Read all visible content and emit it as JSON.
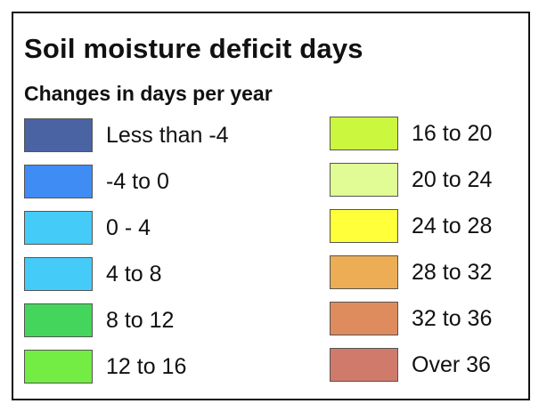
{
  "legend": {
    "title": "Soil moisture deficit days",
    "subtitle": "Changes in days per year",
    "left_items": [
      {
        "label": "Less than -4",
        "color": "#4a63a3"
      },
      {
        "label": "-4 to 0",
        "color": "#3f8cf5"
      },
      {
        "label": "0 - 4",
        "color": "#45cbf8"
      },
      {
        "label": "4 to 8",
        "color": "#45cbf8"
      },
      {
        "label": "8 to 12",
        "color": "#44d65c"
      },
      {
        "label": "12 to 16",
        "color": "#73ec44"
      }
    ],
    "right_items": [
      {
        "label": "16 to 20",
        "color": "#ccf73f"
      },
      {
        "label": "20 to 24",
        "color": "#e1fc95"
      },
      {
        "label": "24 to 28",
        "color": "#ffff3a"
      },
      {
        "label": "28 to 32",
        "color": "#ecad55"
      },
      {
        "label": "32 to 36",
        "color": "#de8c5d"
      },
      {
        "label": "Over 36",
        "color": "#d07a6c"
      }
    ]
  }
}
